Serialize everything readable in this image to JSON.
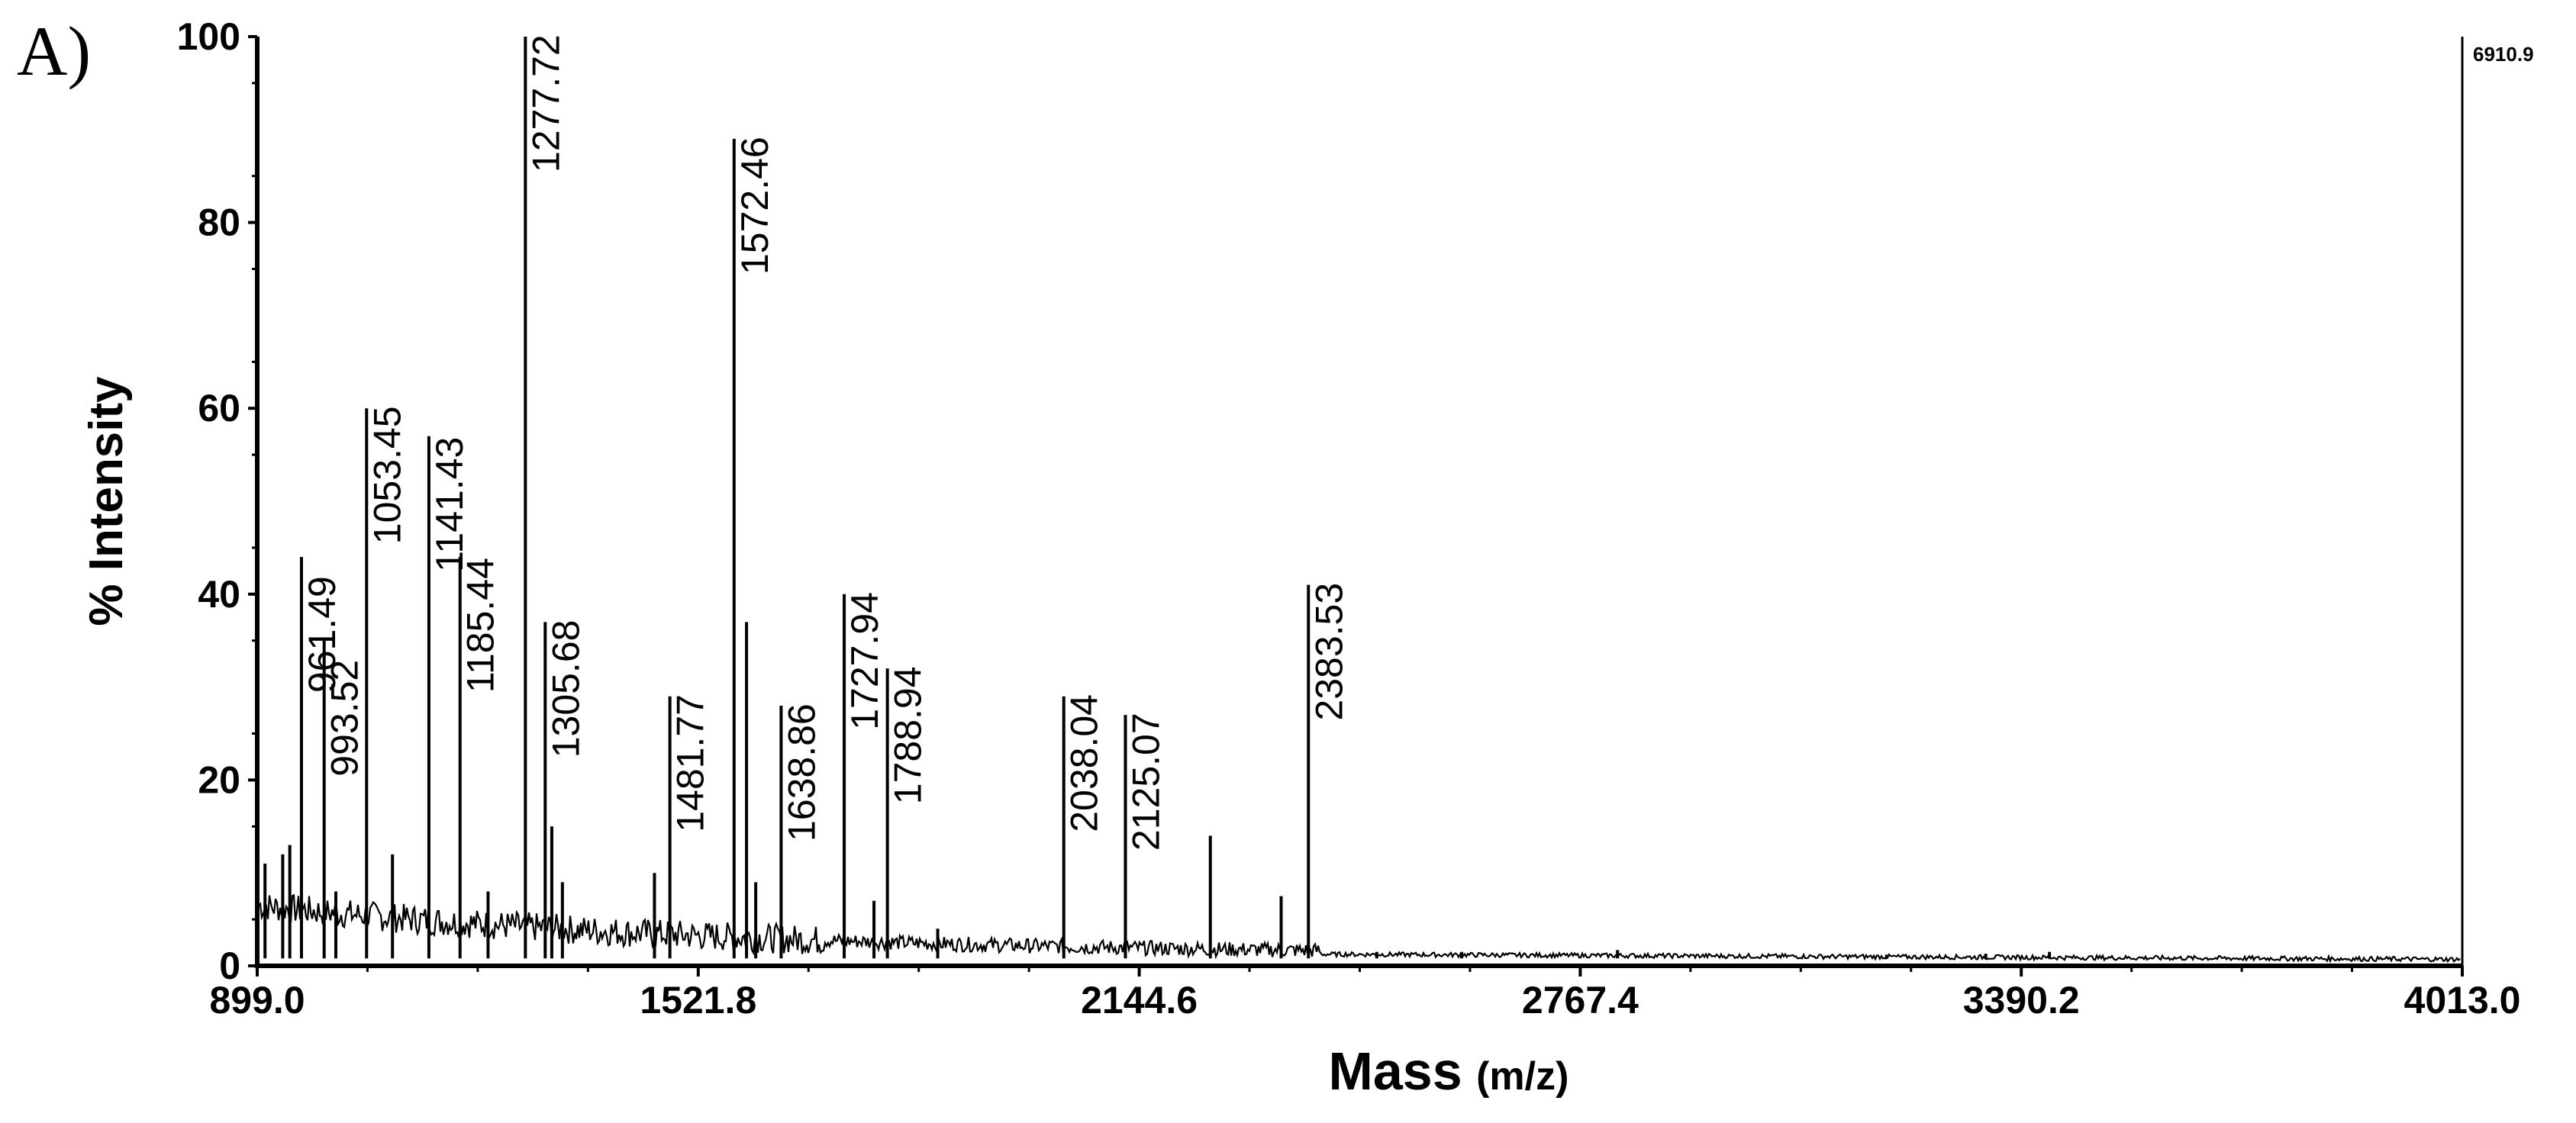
{
  "panel_label": "A)",
  "max_counts_label": "6910.9",
  "chart_data": {
    "type": "line",
    "xlabel": "Mass",
    "xlabel_unit": "(m/z)",
    "ylabel": "% Intensity",
    "xlim": [
      899.0,
      4013.0
    ],
    "ylim": [
      0,
      100
    ],
    "x_ticks": [
      "899.0",
      "1521.8",
      "2144.6",
      "2767.4",
      "3390.2",
      "4013.0"
    ],
    "y_ticks": [
      "0",
      "20",
      "40",
      "60",
      "80",
      "100"
    ],
    "labeled_peaks": [
      {
        "mz": 961.49,
        "label": "961.49",
        "intensity": 44
      },
      {
        "mz": 993.52,
        "label": "993.52",
        "intensity": 35
      },
      {
        "mz": 1053.45,
        "label": "1053.45",
        "intensity": 60
      },
      {
        "mz": 1141.43,
        "label": "1141.43",
        "intensity": 57
      },
      {
        "mz": 1185.44,
        "label": "1185.44",
        "intensity": 44
      },
      {
        "mz": 1277.72,
        "label": "1277.72",
        "intensity": 100
      },
      {
        "mz": 1305.68,
        "label": "1305.68",
        "intensity": 37
      },
      {
        "mz": 1481.77,
        "label": "1481.77",
        "intensity": 29
      },
      {
        "mz": 1572.46,
        "label": "1572.46",
        "intensity": 89
      },
      {
        "mz": 1638.86,
        "label": "1638.86",
        "intensity": 28
      },
      {
        "mz": 1727.94,
        "label": "1727.94",
        "intensity": 40
      },
      {
        "mz": 1788.94,
        "label": "1788.94",
        "intensity": 32
      },
      {
        "mz": 2038.04,
        "label": "2038.04",
        "intensity": 29
      },
      {
        "mz": 2125.07,
        "label": "2125.07",
        "intensity": 27
      },
      {
        "mz": 2383.53,
        "label": "2383.53",
        "intensity": 41
      }
    ],
    "minor_peaks": [
      {
        "mz": 910,
        "intensity": 11
      },
      {
        "mz": 935,
        "intensity": 12
      },
      {
        "mz": 945,
        "intensity": 13
      },
      {
        "mz": 1010,
        "intensity": 8
      },
      {
        "mz": 1090,
        "intensity": 12
      },
      {
        "mz": 1225,
        "intensity": 8
      },
      {
        "mz": 1315,
        "intensity": 15
      },
      {
        "mz": 1330,
        "intensity": 9
      },
      {
        "mz": 1460,
        "intensity": 10
      },
      {
        "mz": 1590,
        "intensity": 37
      },
      {
        "mz": 1603,
        "intensity": 9
      },
      {
        "mz": 1770,
        "intensity": 7
      },
      {
        "mz": 1860,
        "intensity": 4
      },
      {
        "mz": 2245,
        "intensity": 14
      },
      {
        "mz": 2345,
        "intensity": 7.5
      },
      {
        "mz": 2480,
        "intensity": 1.5
      },
      {
        "mz": 2600,
        "intensity": 1.5
      },
      {
        "mz": 2820,
        "intensity": 1.7
      },
      {
        "mz": 3200,
        "intensity": 1.2
      },
      {
        "mz": 3340,
        "intensity": 1.3
      },
      {
        "mz": 3430,
        "intensity": 1.5
      }
    ],
    "grid": false,
    "legend": "none"
  }
}
